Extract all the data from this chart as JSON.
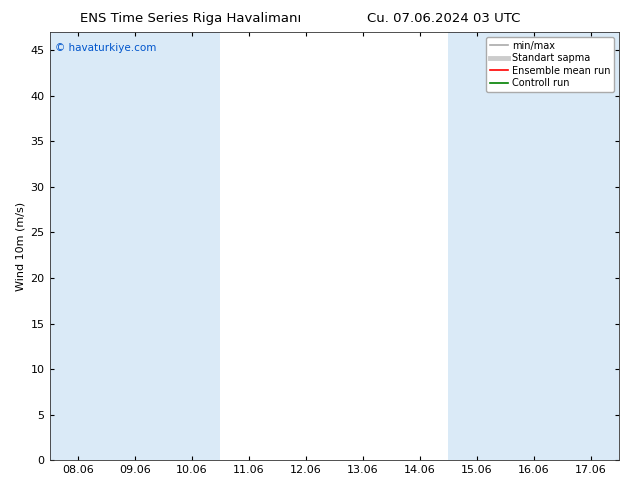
{
  "title_left": "ENS Time Series Riga Havalimanı",
  "title_right": "Cu. 07.06.2024 03 UTC",
  "ylabel": "Wind 10m (m/s)",
  "watermark": "© havaturkiye.com",
  "xtick_labels": [
    "08.06",
    "09.06",
    "10.06",
    "11.06",
    "12.06",
    "13.06",
    "14.06",
    "15.06",
    "16.06",
    "17.06"
  ],
  "ytick_values": [
    0,
    5,
    10,
    15,
    20,
    25,
    30,
    35,
    40,
    45
  ],
  "ymax": 47,
  "ymin": 0,
  "background_color": "#ffffff",
  "plot_bg_color": "#ffffff",
  "shaded_columns": [
    0,
    1,
    2,
    7,
    8,
    9
  ],
  "shaded_color": "#daeaf7",
  "legend_items": [
    {
      "label": "min/max",
      "color": "#aaaaaa",
      "lw": 1.2
    },
    {
      "label": "Standart sapma",
      "color": "#cccccc",
      "lw": 3.5
    },
    {
      "label": "Ensemble mean run",
      "color": "#ff0000",
      "lw": 1.2
    },
    {
      "label": "Controll run",
      "color": "#008000",
      "lw": 1.2
    }
  ],
  "title_fontsize": 9.5,
  "axis_fontsize": 8,
  "watermark_color": "#0055cc",
  "watermark_fontsize": 7.5,
  "figsize": [
    6.34,
    4.9
  ],
  "dpi": 100,
  "n_cols": 10
}
